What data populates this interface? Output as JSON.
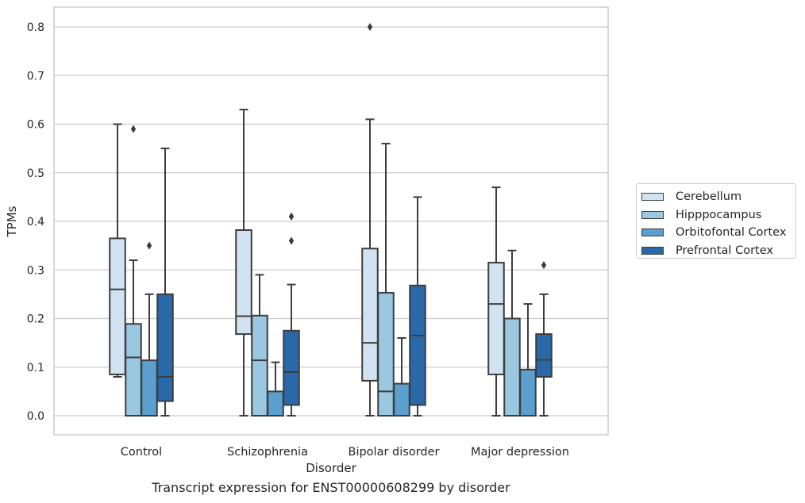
{
  "caption": "Transcript expression for ENST00000608299 by disorder",
  "chart_data": {
    "type": "box",
    "xlabel": "Disorder",
    "ylabel": "TPMs",
    "ylim": [
      -0.04,
      0.84
    ],
    "yticks": [
      "0.0",
      "0.1",
      "0.2",
      "0.3",
      "0.4",
      "0.5",
      "0.6",
      "0.7",
      "0.8"
    ],
    "grid": "horizontal",
    "legend_position": "right",
    "categories": [
      "Control",
      "Schizophrenia",
      "Bipolar disorder",
      "Major depression"
    ],
    "series": [
      {
        "name": "Cerebellum",
        "color": "#d1e2f2",
        "boxes": [
          {
            "whisker_low": 0.08,
            "q1": 0.085,
            "median": 0.26,
            "q3": 0.365,
            "whisker_high": 0.6,
            "outliers": []
          },
          {
            "whisker_low": 0.0,
            "q1": 0.168,
            "median": 0.205,
            "q3": 0.382,
            "whisker_high": 0.63,
            "outliers": []
          },
          {
            "whisker_low": 0.0,
            "q1": 0.072,
            "median": 0.15,
            "q3": 0.344,
            "whisker_high": 0.61,
            "outliers": [
              0.8
            ]
          },
          {
            "whisker_low": 0.0,
            "q1": 0.085,
            "median": 0.23,
            "q3": 0.315,
            "whisker_high": 0.47,
            "outliers": []
          }
        ]
      },
      {
        "name": "Hipppocampus",
        "color": "#9ac8e0",
        "boxes": [
          {
            "whisker_low": 0.0,
            "q1": 0.0,
            "median": 0.12,
            "q3": 0.189,
            "whisker_high": 0.32,
            "outliers": [
              0.59
            ]
          },
          {
            "whisker_low": 0.0,
            "q1": 0.0,
            "median": 0.114,
            "q3": 0.206,
            "whisker_high": 0.29,
            "outliers": []
          },
          {
            "whisker_low": 0.0,
            "q1": 0.0,
            "median": 0.05,
            "q3": 0.253,
            "whisker_high": 0.56,
            "outliers": []
          },
          {
            "whisker_low": 0.0,
            "q1": 0.0,
            "median": 0.0,
            "q3": 0.2,
            "whisker_high": 0.34,
            "outliers": []
          }
        ]
      },
      {
        "name": "Orbitofontal Cortex",
        "color": "#5a9fcd",
        "boxes": [
          {
            "whisker_low": 0.0,
            "q1": 0.0,
            "median": 0.0,
            "q3": 0.114,
            "whisker_high": 0.25,
            "outliers": [
              0.35
            ]
          },
          {
            "whisker_low": 0.0,
            "q1": 0.0,
            "median": 0.0,
            "q3": 0.05,
            "whisker_high": 0.11,
            "outliers": []
          },
          {
            "whisker_low": 0.0,
            "q1": 0.0,
            "median": 0.0,
            "q3": 0.066,
            "whisker_high": 0.16,
            "outliers": []
          },
          {
            "whisker_low": 0.0,
            "q1": 0.0,
            "median": 0.0,
            "q3": 0.095,
            "whisker_high": 0.23,
            "outliers": []
          }
        ]
      },
      {
        "name": "Prefrontal Cortex",
        "color": "#2a69a9",
        "boxes": [
          {
            "whisker_low": 0.0,
            "q1": 0.03,
            "median": 0.08,
            "q3": 0.25,
            "whisker_high": 0.55,
            "outliers": []
          },
          {
            "whisker_low": 0.0,
            "q1": 0.022,
            "median": 0.09,
            "q3": 0.175,
            "whisker_high": 0.27,
            "outliers": [
              0.36,
              0.41,
              0.41
            ]
          },
          {
            "whisker_low": 0.0,
            "q1": 0.022,
            "median": 0.165,
            "q3": 0.268,
            "whisker_high": 0.45,
            "outliers": []
          },
          {
            "whisker_low": 0.0,
            "q1": 0.08,
            "median": 0.115,
            "q3": 0.168,
            "whisker_high": 0.25,
            "outliers": [
              0.31
            ]
          }
        ]
      }
    ]
  }
}
